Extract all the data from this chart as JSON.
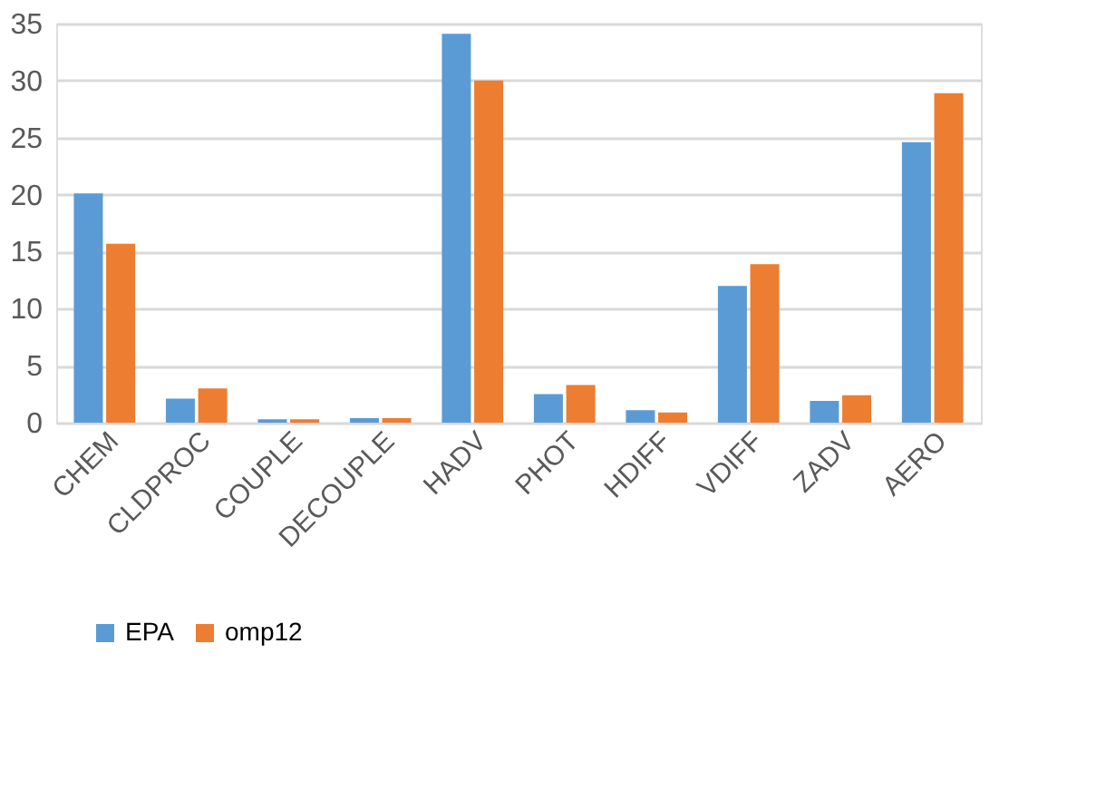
{
  "chart_data": {
    "type": "bar",
    "categories": [
      "CHEM",
      "CLDPROC",
      "COUPLE",
      "DECOUPLE",
      "HADV",
      "PHOT",
      "HDIFF",
      "VDIFF",
      "ZADV",
      "AERO"
    ],
    "series": [
      {
        "name": "EPA",
        "color": "#5b9bd5",
        "values": [
          20.1,
          2.1,
          0.3,
          0.4,
          34.1,
          2.5,
          1.1,
          12.0,
          1.9,
          24.6
        ]
      },
      {
        "name": "omp12",
        "color": "#ed7d31",
        "values": [
          15.7,
          3.0,
          0.3,
          0.4,
          30.0,
          3.3,
          0.9,
          13.9,
          2.4,
          28.9
        ]
      }
    ],
    "ylim": [
      0,
      35
    ],
    "yticks": [
      0,
      5,
      10,
      15,
      20,
      25,
      30,
      35
    ],
    "grid": "y",
    "legend": "bottom"
  }
}
